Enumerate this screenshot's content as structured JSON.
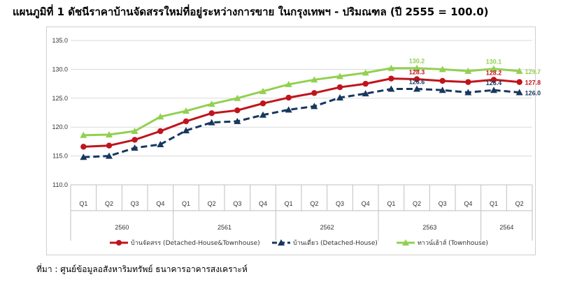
{
  "title": "แผนภูมิที่ 1 ดัชนีราคาบ้านจัดสรรใหม่ที่อยู่ระหว่างการขาย ในกรุงเทพฯ - ปริมณฑล (ปี 2555 = 100.0)",
  "source": "ที่มา : ศูนย์ข้อมูลอสังหาริมทรัพย์ ธนาคารอาคารสงเคราะห์",
  "chart_data": {
    "type": "line",
    "title": "แผนภูมิที่ 1 ดัชนีราคาบ้านจัดสรรใหม่ที่อยู่ระหว่างการขาย ในกรุงเทพฯ - ปริมณฑล (ปี 2555 = 100.0)",
    "quarters": [
      "Q1",
      "Q2",
      "Q3",
      "Q4",
      "Q1",
      "Q2",
      "Q3",
      "Q4",
      "Q1",
      "Q2",
      "Q3",
      "Q4",
      "Q1",
      "Q2",
      "Q3",
      "Q4",
      "Q1",
      "Q2"
    ],
    "years": [
      {
        "label": "2560",
        "span": 4
      },
      {
        "label": "2561",
        "span": 4
      },
      {
        "label": "2562",
        "span": 4
      },
      {
        "label": "2563",
        "span": 4
      },
      {
        "label": "2564",
        "span": 2
      }
    ],
    "ylim": [
      110,
      135
    ],
    "yticks": [
      "110.0",
      "115.0",
      "120.0",
      "125.0",
      "130.0",
      "135.0"
    ],
    "grid": true,
    "legend_position": "bottom",
    "series": [
      {
        "name": "บ้านจัดสรร (Detached-House&Townhouse)",
        "color": "#c0141c",
        "style": "solid",
        "marker": "circle",
        "values": [
          116.6,
          116.8,
          117.8,
          119.3,
          121.0,
          122.4,
          122.9,
          124.1,
          125.1,
          125.9,
          126.9,
          127.5,
          128.4,
          128.3,
          128.0,
          127.8,
          128.2,
          127.8
        ],
        "labels": [
          {
            "index": 13,
            "text": "128.3"
          },
          {
            "index": 16,
            "text": "128.2"
          },
          {
            "index": 17,
            "text": "127.8"
          }
        ]
      },
      {
        "name": "บ้านเดี่ยว (Detached-House)",
        "color": "#17375e",
        "style": "dashed",
        "marker": "triangle",
        "values": [
          114.8,
          115.0,
          116.4,
          117.0,
          119.4,
          120.8,
          121.0,
          122.1,
          123.0,
          123.6,
          125.1,
          125.8,
          126.6,
          126.6,
          126.4,
          126.0,
          126.4,
          126.0
        ],
        "labels": [
          {
            "index": 13,
            "text": "126.6"
          },
          {
            "index": 16,
            "text": "126.4"
          },
          {
            "index": 17,
            "text": "126.0"
          }
        ]
      },
      {
        "name": "ทาวน์เฮ้าส์ (Townhouse)",
        "color": "#92d050",
        "style": "solid",
        "marker": "triangle",
        "values": [
          118.6,
          118.7,
          119.3,
          121.8,
          122.8,
          124.0,
          125.0,
          126.2,
          127.4,
          128.2,
          128.8,
          129.4,
          130.2,
          130.2,
          130.0,
          129.7,
          130.1,
          129.7
        ],
        "labels": [
          {
            "index": 13,
            "text": "130.2"
          },
          {
            "index": 16,
            "text": "130.1"
          },
          {
            "index": 17,
            "text": "129.7"
          }
        ]
      }
    ]
  }
}
